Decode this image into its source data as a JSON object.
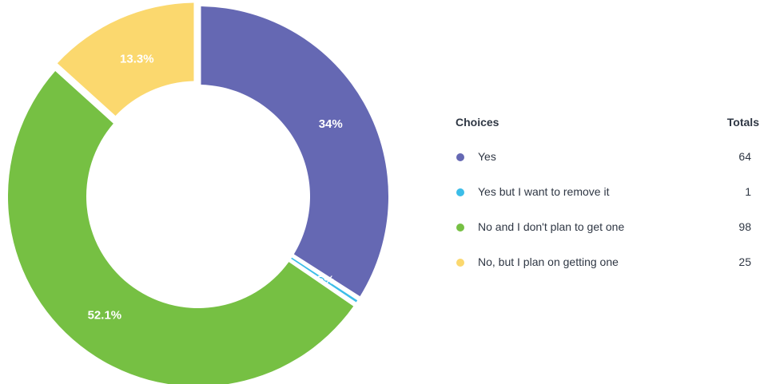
{
  "chart_data": {
    "type": "pie",
    "variant": "donut",
    "title": "",
    "legend_position": "right",
    "legend": {
      "choices_header": "Choices",
      "totals_header": "Totals"
    },
    "slices": [
      {
        "label": "Yes",
        "value": 64,
        "percent_label": "34%",
        "color": "#6568b3"
      },
      {
        "label": "Yes but I want to remove it",
        "value": 1,
        "percent_label": ".5%",
        "color": "#3cbde8"
      },
      {
        "label": "No and I don't plan to get one",
        "value": 98,
        "percent_label": "52.1%",
        "color": "#76c043"
      },
      {
        "label": "No, but I plan on getting one",
        "value": 25,
        "percent_label": "13.3%",
        "color": "#fbd86e"
      }
    ]
  }
}
